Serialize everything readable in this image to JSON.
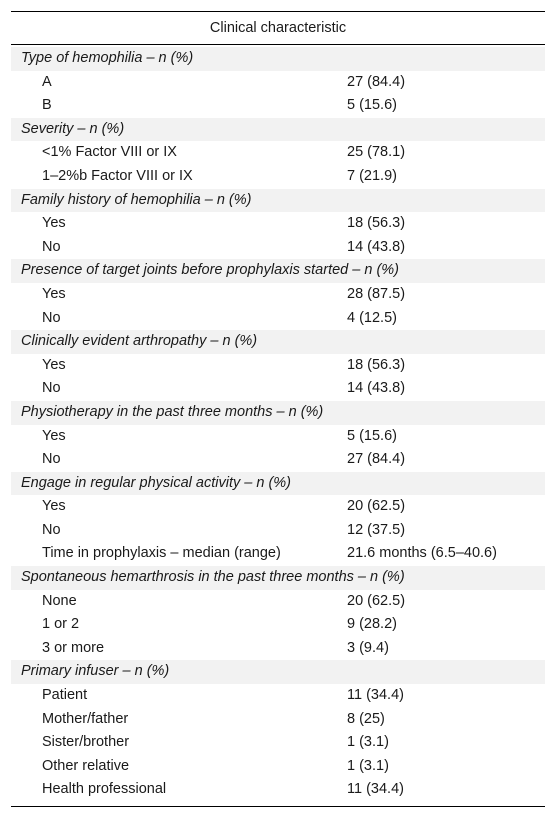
{
  "table": {
    "header": "Clinical characteristic",
    "sections": [
      {
        "title": "Type of hemophilia – n (%)",
        "rows": [
          {
            "label": "A",
            "value": "27 (84.4)"
          },
          {
            "label": "B",
            "value": "5 (15.6)"
          }
        ]
      },
      {
        "title": "Severity – n (%)",
        "rows": [
          {
            "label": "<1% Factor VIII or IX",
            "value": "25 (78.1)"
          },
          {
            "label": "1–2%b Factor VIII or IX",
            "value": "7 (21.9)"
          }
        ]
      },
      {
        "title": "Family history of hemophilia – n (%)",
        "rows": [
          {
            "label": "Yes",
            "value": "18 (56.3)"
          },
          {
            "label": "No",
            "value": "14 (43.8)"
          }
        ]
      },
      {
        "title": "Presence of target joints before prophylaxis started – n (%)",
        "rows": [
          {
            "label": "Yes",
            "value": "28 (87.5)"
          },
          {
            "label": "No",
            "value": "4 (12.5)"
          }
        ]
      },
      {
        "title": "Clinically evident arthropathy – n (%)",
        "rows": [
          {
            "label": "Yes",
            "value": "18 (56.3)"
          },
          {
            "label": "No",
            "value": "14 (43.8)"
          }
        ]
      },
      {
        "title": "Physiotherapy in the past three months – n (%)",
        "rows": [
          {
            "label": "Yes",
            "value": "5 (15.6)"
          },
          {
            "label": "No",
            "value": "27 (84.4)"
          }
        ]
      },
      {
        "title": "Engage in regular physical activity – n (%)",
        "rows": [
          {
            "label": "Yes",
            "value": "20 (62.5)"
          },
          {
            "label": "No",
            "value": "12 (37.5)"
          },
          {
            "label": "Time in prophylaxis – median (range)",
            "value": "21.6 months (6.5–40.6)"
          }
        ]
      },
      {
        "title": "Spontaneous hemarthrosis in the past three months – n (%)",
        "rows": [
          {
            "label": "None",
            "value": "20 (62.5)"
          },
          {
            "label": "1 or 2",
            "value": "9 (28.2)"
          },
          {
            "label": "3 or more",
            "value": "3 (9.4)"
          }
        ]
      },
      {
        "title": "Primary infuser – n (%)",
        "rows": [
          {
            "label": "Patient",
            "value": "11 (34.4)"
          },
          {
            "label": "Mother/father",
            "value": "8 (25)"
          },
          {
            "label": "Sister/brother",
            "value": "1 (3.1)"
          },
          {
            "label": "Other relative",
            "value": "1 (3.1)"
          },
          {
            "label": "Health professional",
            "value": "11 (34.4)"
          }
        ]
      }
    ]
  }
}
